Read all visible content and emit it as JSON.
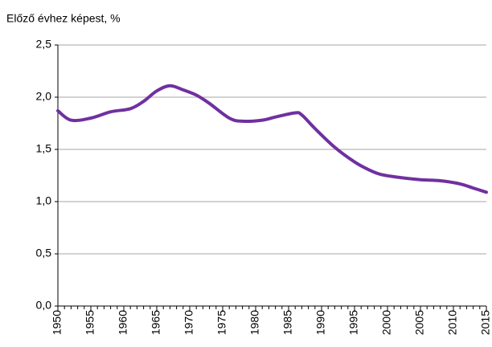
{
  "chart_data": {
    "type": "line",
    "y_label": "Előző évhez képest, %",
    "x": [
      1950,
      1952,
      1955,
      1958,
      1961,
      1963,
      1965,
      1967,
      1969,
      1971,
      1973,
      1976,
      1978,
      1981,
      1983,
      1986,
      1987,
      1989,
      1992,
      1995,
      1997,
      1999,
      2002,
      2005,
      2008,
      2011,
      2013,
      2015
    ],
    "series": [
      {
        "name": "Előző évhez képest",
        "color": "#7030a0",
        "values": [
          1.87,
          1.78,
          1.8,
          1.86,
          1.89,
          1.96,
          2.06,
          2.11,
          2.07,
          2.02,
          1.94,
          1.8,
          1.77,
          1.78,
          1.81,
          1.85,
          1.83,
          1.7,
          1.52,
          1.38,
          1.31,
          1.26,
          1.23,
          1.21,
          1.2,
          1.17,
          1.13,
          1.09
        ]
      }
    ],
    "xlim": [
      1950,
      2015
    ],
    "xticks": [
      1950,
      1955,
      1960,
      1965,
      1970,
      1975,
      1980,
      1985,
      1990,
      1995,
      2000,
      2005,
      2010,
      2015
    ],
    "ylim": [
      0,
      2.5
    ],
    "yticks": [
      {
        "value": 0,
        "label": "0,0"
      },
      {
        "value": 0.5,
        "label": "0,5"
      },
      {
        "value": 1,
        "label": "1,0"
      },
      {
        "value": 1.5,
        "label": "1,5"
      },
      {
        "value": 2,
        "label": "2,0"
      },
      {
        "value": 2.5,
        "label": "2,5"
      }
    ],
    "grid": true
  }
}
